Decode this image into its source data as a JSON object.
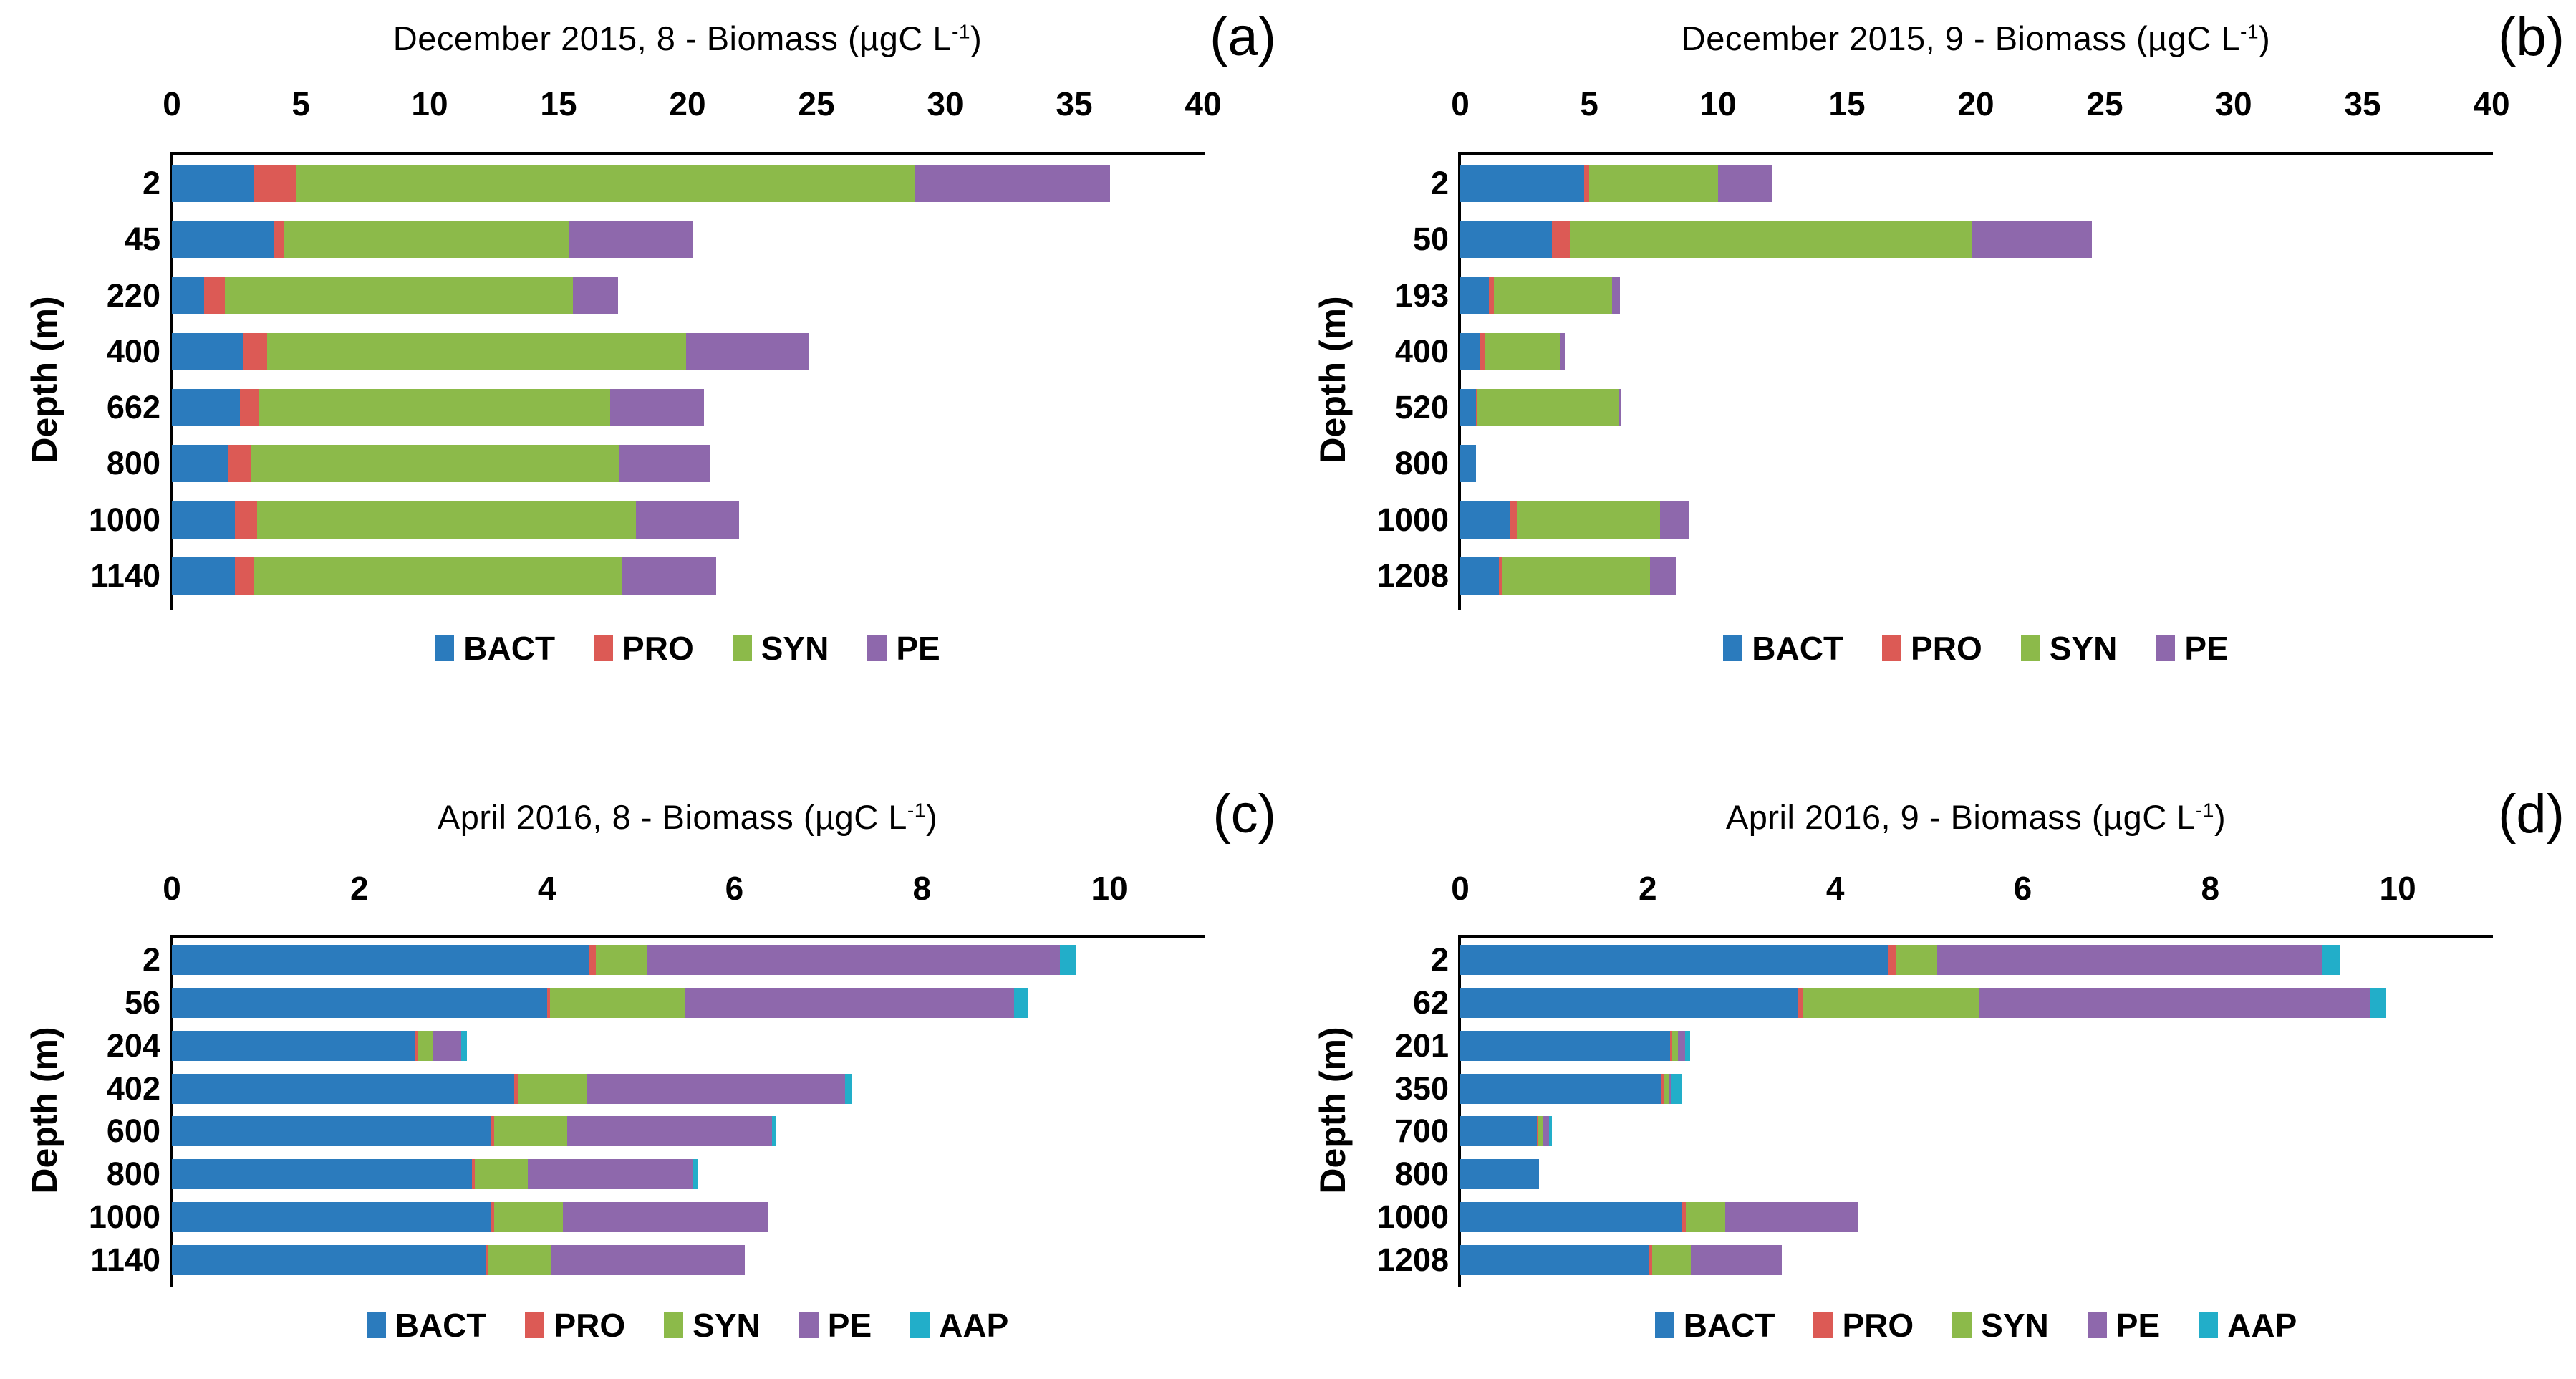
{
  "figure": {
    "background": "#ffffff",
    "ylabel": "Depth (m)"
  },
  "colors": {
    "BACT": "#2B7BBD",
    "PRO": "#DC5A55",
    "SYN": "#8CBA4A",
    "PE": "#8E68AC",
    "AAP": "#22AEC9",
    "axis": "#000000",
    "text": "#000000"
  },
  "chart_data": [
    {
      "id": "a",
      "type": "bar",
      "orientation": "horizontal-stacked",
      "panel_label": "(a)",
      "title_pre": "December 2015, 8 - Biomass (µgC L",
      "title_sup": "-1",
      "title_post": ")",
      "title_full": "December 2015, 8 - Biomass (µgC L-1)",
      "ylabel": "Depth (m)",
      "xlim": [
        0,
        40
      ],
      "xticks": [
        0,
        5,
        10,
        15,
        20,
        25,
        30,
        35,
        40
      ],
      "axis_extent": 40,
      "grid": false,
      "legend_position": "bottom",
      "categories": [
        "2",
        "45",
        "220",
        "400",
        "662",
        "800",
        "1000",
        "1140"
      ],
      "legend": [
        "BACT",
        "PRO",
        "SYN",
        "PE"
      ],
      "series": [
        {
          "name": "BACT",
          "values": [
            3.2,
            3.95,
            1.25,
            2.75,
            2.65,
            2.2,
            2.45,
            2.45
          ]
        },
        {
          "name": "PRO",
          "values": [
            1.6,
            0.4,
            0.8,
            0.95,
            0.7,
            0.85,
            0.85,
            0.75
          ]
        },
        {
          "name": "SYN",
          "values": [
            24.0,
            11.05,
            13.5,
            16.25,
            13.65,
            14.3,
            14.7,
            14.25
          ]
        },
        {
          "name": "PE",
          "values": [
            7.6,
            4.8,
            1.75,
            4.75,
            3.65,
            3.5,
            4.0,
            3.65
          ]
        }
      ]
    },
    {
      "id": "b",
      "type": "bar",
      "orientation": "horizontal-stacked",
      "panel_label": "(b)",
      "title_pre": "December 2015, 9 - Biomass (µgC L",
      "title_sup": "-1",
      "title_post": ")",
      "title_full": "December 2015, 9 - Biomass (µgC L-1)",
      "ylabel": "Depth (m)",
      "xlim": [
        0,
        40
      ],
      "xticks": [
        0,
        5,
        10,
        15,
        20,
        25,
        30,
        35,
        40
      ],
      "axis_extent": 40,
      "grid": false,
      "legend_position": "bottom",
      "categories": [
        "2",
        "50",
        "193",
        "400",
        "520",
        "800",
        "1000",
        "1208"
      ],
      "legend": [
        "BACT",
        "PRO",
        "SYN",
        "PE"
      ],
      "series": [
        {
          "name": "BACT",
          "values": [
            4.8,
            3.55,
            1.1,
            0.75,
            0.6,
            0.6,
            1.95,
            1.5
          ]
        },
        {
          "name": "PRO",
          "values": [
            0.2,
            0.7,
            0.2,
            0.2,
            0.05,
            0,
            0.25,
            0.15
          ]
        },
        {
          "name": "SYN",
          "values": [
            5.0,
            15.6,
            4.6,
            2.9,
            5.5,
            0,
            5.55,
            5.7
          ]
        },
        {
          "name": "PE",
          "values": [
            2.1,
            4.65,
            0.3,
            0.2,
            0.1,
            0,
            1.15,
            1.0
          ]
        }
      ]
    },
    {
      "id": "c",
      "type": "bar",
      "orientation": "horizontal-stacked",
      "panel_label": "(c)",
      "title_pre": "April 2016, 8 - Biomass (µgC L",
      "title_sup": "-1",
      "title_post": ")",
      "title_full": "April 2016, 8 - Biomass (µgC L-1)",
      "ylabel": "Depth (m)",
      "xlim": [
        0,
        10
      ],
      "xticks": [
        0,
        2,
        4,
        6,
        8,
        10
      ],
      "axis_extent": 11,
      "grid": false,
      "legend_position": "bottom",
      "categories": [
        "2",
        "56",
        "204",
        "402",
        "600",
        "800",
        "1000",
        "1140"
      ],
      "legend": [
        "BACT",
        "PRO",
        "SYN",
        "PE",
        "AAP"
      ],
      "series": [
        {
          "name": "BACT",
          "values": [
            4.45,
            4.0,
            2.6,
            3.65,
            3.4,
            3.2,
            3.4,
            3.35
          ]
        },
        {
          "name": "PRO",
          "values": [
            0.07,
            0.03,
            0.03,
            0.04,
            0.04,
            0.03,
            0.04,
            0.03
          ]
        },
        {
          "name": "SYN",
          "values": [
            0.55,
            1.45,
            0.15,
            0.74,
            0.78,
            0.57,
            0.73,
            0.67
          ]
        },
        {
          "name": "PE",
          "values": [
            4.4,
            3.5,
            0.31,
            2.75,
            2.18,
            1.76,
            2.19,
            2.06
          ]
        },
        {
          "name": "AAP",
          "values": [
            0.17,
            0.15,
            0.06,
            0.07,
            0.05,
            0.05,
            0,
            0
          ]
        }
      ]
    },
    {
      "id": "d",
      "type": "bar",
      "orientation": "horizontal-stacked",
      "panel_label": "(d)",
      "title_pre": "April 2016, 9 - Biomass (µgC L",
      "title_sup": "-1",
      "title_post": ")",
      "title_full": "April 2016, 9 - Biomass (µgC L-1)",
      "ylabel": "Depth (m)",
      "xlim": [
        0,
        10
      ],
      "xticks": [
        0,
        2,
        4,
        6,
        8,
        10
      ],
      "axis_extent": 11,
      "grid": false,
      "legend_position": "bottom",
      "categories": [
        "2",
        "62",
        "201",
        "350",
        "700",
        "800",
        "1000",
        "1208"
      ],
      "legend": [
        "BACT",
        "PRO",
        "SYN",
        "PE",
        "AAP"
      ],
      "series": [
        {
          "name": "BACT",
          "values": [
            4.57,
            3.6,
            2.24,
            2.15,
            0.82,
            0.84,
            2.37,
            2.02
          ]
        },
        {
          "name": "PRO",
          "values": [
            0.08,
            0.06,
            0.02,
            0.03,
            0.01,
            0,
            0.04,
            0.03
          ]
        },
        {
          "name": "SYN",
          "values": [
            0.44,
            1.87,
            0.06,
            0.05,
            0.05,
            0,
            0.42,
            0.41
          ]
        },
        {
          "name": "PE",
          "values": [
            4.1,
            4.17,
            0.08,
            0.02,
            0.07,
            0,
            1.42,
            0.97
          ]
        },
        {
          "name": "AAP",
          "values": [
            0.19,
            0.17,
            0.05,
            0.12,
            0.03,
            0,
            0,
            0
          ]
        }
      ]
    }
  ]
}
